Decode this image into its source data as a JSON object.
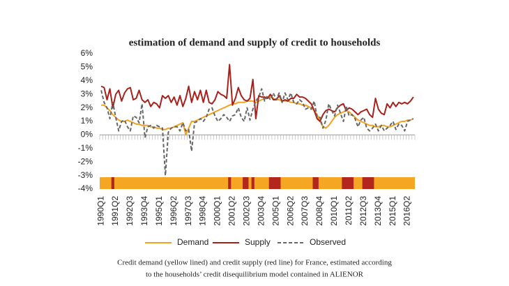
{
  "chart_data": {
    "type": "line",
    "title": "estimation of demand and supply of credit to households",
    "categories": [
      "1990Q1",
      null,
      null,
      null,
      null,
      "1991Q2",
      null,
      null,
      null,
      null,
      "1992Q3",
      null,
      null,
      null,
      null,
      "1993Q4",
      null,
      null,
      null,
      null,
      "1995Q1",
      null,
      null,
      null,
      null,
      "1996Q2",
      null,
      null,
      null,
      null,
      "1997Q3",
      null,
      null,
      null,
      null,
      "1998Q4",
      null,
      null,
      null,
      null,
      "2000Q1",
      null,
      null,
      null,
      null,
      "2001Q2",
      null,
      null,
      null,
      null,
      "2002Q3",
      null,
      null,
      null,
      null,
      "2003Q4",
      null,
      null,
      null,
      null,
      "2005Q1",
      null,
      null,
      null,
      null,
      "2006Q2",
      null,
      null,
      null,
      null,
      "2007Q3",
      null,
      null,
      null,
      null,
      "2008Q4",
      null,
      null,
      null,
      null,
      "2010Q1",
      null,
      null,
      null,
      null,
      "2011Q2",
      null,
      null,
      null,
      null,
      "2012Q3",
      null,
      null,
      null,
      null,
      "2013Q4",
      null,
      null,
      null,
      null,
      "2015Q1",
      null,
      null,
      null,
      null,
      "2016Q2",
      null,
      null
    ],
    "series": [
      {
        "name": "Demand",
        "color": "#f4a21e",
        "dash": false,
        "values": [
          2.2,
          2.2,
          2.0,
          1.8,
          1.5,
          1.3,
          1.1,
          1.0,
          1.0,
          1.1,
          1.0,
          0.9,
          0.8,
          0.8,
          0.7,
          0.7,
          0.7,
          0.6,
          0.6,
          0.5,
          0.5,
          0.4,
          0.4,
          0.5,
          0.5,
          0.6,
          0.7,
          0.8,
          0.9,
          0.0,
          0.5,
          1.0,
          1.0,
          1.1,
          1.2,
          1.3,
          1.4,
          1.5,
          1.6,
          1.7,
          1.8,
          1.9,
          2.0,
          2.1,
          2.2,
          2.3,
          2.3,
          2.4,
          2.4,
          2.4,
          2.5,
          2.5,
          2.5,
          2.4,
          2.5,
          2.6,
          2.7,
          2.8,
          2.8,
          2.7,
          2.6,
          2.6,
          2.5,
          2.5,
          2.5,
          2.4,
          2.4,
          2.3,
          2.3,
          2.2,
          2.2,
          2.1,
          2.0,
          1.8,
          1.5,
          1.0,
          0.6,
          0.5,
          0.7,
          1.0,
          1.3,
          1.5,
          1.6,
          1.7,
          1.8,
          1.7,
          1.5,
          1.3,
          1.1,
          1.0,
          0.9,
          0.8,
          0.7,
          0.7,
          0.6,
          0.6,
          0.7,
          0.7,
          0.6,
          0.6,
          0.7,
          0.8,
          0.9,
          1.0,
          1.0,
          1.1,
          1.1,
          1.2
        ]
      },
      {
        "name": "Supply",
        "color": "#a8201a",
        "dash": false,
        "values": [
          3.6,
          3.5,
          2.6,
          3.4,
          2.0,
          3.0,
          3.3,
          2.5,
          3.1,
          3.4,
          3.5,
          2.6,
          2.7,
          3.3,
          2.6,
          2.4,
          2.6,
          2.1,
          2.4,
          2.3,
          2.0,
          2.9,
          2.7,
          2.9,
          2.4,
          2.8,
          2.2,
          2.9,
          2.1,
          2.7,
          3.6,
          2.4,
          3.2,
          2.6,
          3.3,
          2.4,
          3.3,
          2.4,
          2.3,
          2.6,
          3.2,
          3.0,
          2.9,
          2.7,
          5.2,
          2.2,
          2.7,
          3.5,
          2.9,
          2.6,
          2.5,
          2.7,
          4.1,
          1.2,
          2.9,
          2.8,
          2.8,
          2.7,
          3.0,
          2.6,
          2.6,
          2.9,
          2.5,
          2.6,
          2.5,
          2.7,
          2.7,
          3.0,
          2.8,
          2.8,
          2.7,
          2.5,
          2.3,
          1.8,
          1.2,
          1.0,
          1.5,
          1.8,
          1.9,
          1.8,
          1.7,
          2.0,
          2.2,
          2.3,
          1.8,
          2.0,
          1.9,
          1.7,
          1.5,
          1.7,
          1.8,
          1.9,
          1.5,
          1.3,
          2.7,
          1.9,
          1.6,
          1.5,
          2.3,
          2.0,
          2.4,
          2.1,
          2.4,
          2.3,
          2.4,
          2.3,
          2.5,
          2.8
        ]
      },
      {
        "name": "Observed",
        "color": "#666666",
        "dash": true,
        "values": [
          3.3,
          2.4,
          2.0,
          1.2,
          2.4,
          1.3,
          0.3,
          1.0,
          1.1,
          0.6,
          0.3,
          1.4,
          1.3,
          0.9,
          2.3,
          -0.2,
          0.6,
          0.7,
          0.5,
          0.7,
          0.6,
          0.5,
          -3.0,
          0.2,
          0.5,
          0.6,
          0.6,
          0.3,
          0.9,
          0.3,
          0.4,
          -1.2,
          0.9,
          1.0,
          1.2,
          1.0,
          1.3,
          1.9,
          2.0,
          1.4,
          1.0,
          1.2,
          1.5,
          1.3,
          1.0,
          1.4,
          1.5,
          2.0,
          1.3,
          1.0,
          2.0,
          1.1,
          1.9,
          2.5,
          2.8,
          3.4,
          2.5,
          2.9,
          2.6,
          3.1,
          2.6,
          3.1,
          2.4,
          3.1,
          2.6,
          3.1,
          2.4,
          2.3,
          2.6,
          2.4,
          1.9,
          2.0,
          1.9,
          2.5,
          1.3,
          1.3,
          0.5,
          1.1,
          2.3,
          1.8,
          1.4,
          2.2,
          1.6,
          1.0,
          2.1,
          1.4,
          1.5,
          1.2,
          0.6,
          1.1,
          1.3,
          0.5,
          0.3,
          0.5,
          0.8,
          0.3,
          0.7,
          0.3,
          0.5,
          0.7,
          1.0,
          0.4,
          0.8,
          0.7,
          0.3,
          1.0,
          1.1,
          1.2
        ]
      }
    ],
    "band_color": "#f5a623",
    "band_highlight_color": "#b3261e",
    "band_highlights": [
      [
        4,
        4
      ],
      [
        44,
        44
      ],
      [
        49,
        50
      ],
      [
        52,
        52
      ],
      [
        58,
        61
      ],
      [
        73,
        74
      ],
      [
        83,
        86
      ],
      [
        90,
        93
      ]
    ],
    "ylim": [
      -4,
      6
    ],
    "yticks": [
      {
        "value": -4,
        "label": "-4%"
      },
      {
        "value": -3,
        "label": "-3%"
      },
      {
        "value": -2,
        "label": "-2%"
      },
      {
        "value": -1,
        "label": "-1%"
      },
      {
        "value": 0,
        "label": "0%"
      },
      {
        "value": 1,
        "label": "1%"
      },
      {
        "value": 2,
        "label": "2%"
      },
      {
        "value": 3,
        "label": "3%"
      },
      {
        "value": 4,
        "label": "4%"
      },
      {
        "value": 5,
        "label": "5%"
      },
      {
        "value": 6,
        "label": "6%"
      }
    ],
    "grid": false
  },
  "caption": [
    "Credit demand (yellow lined) and credit supply (red line) for France, estimated according",
    "to the households’ credit disequilibrium model contained in ALIENOR"
  ]
}
